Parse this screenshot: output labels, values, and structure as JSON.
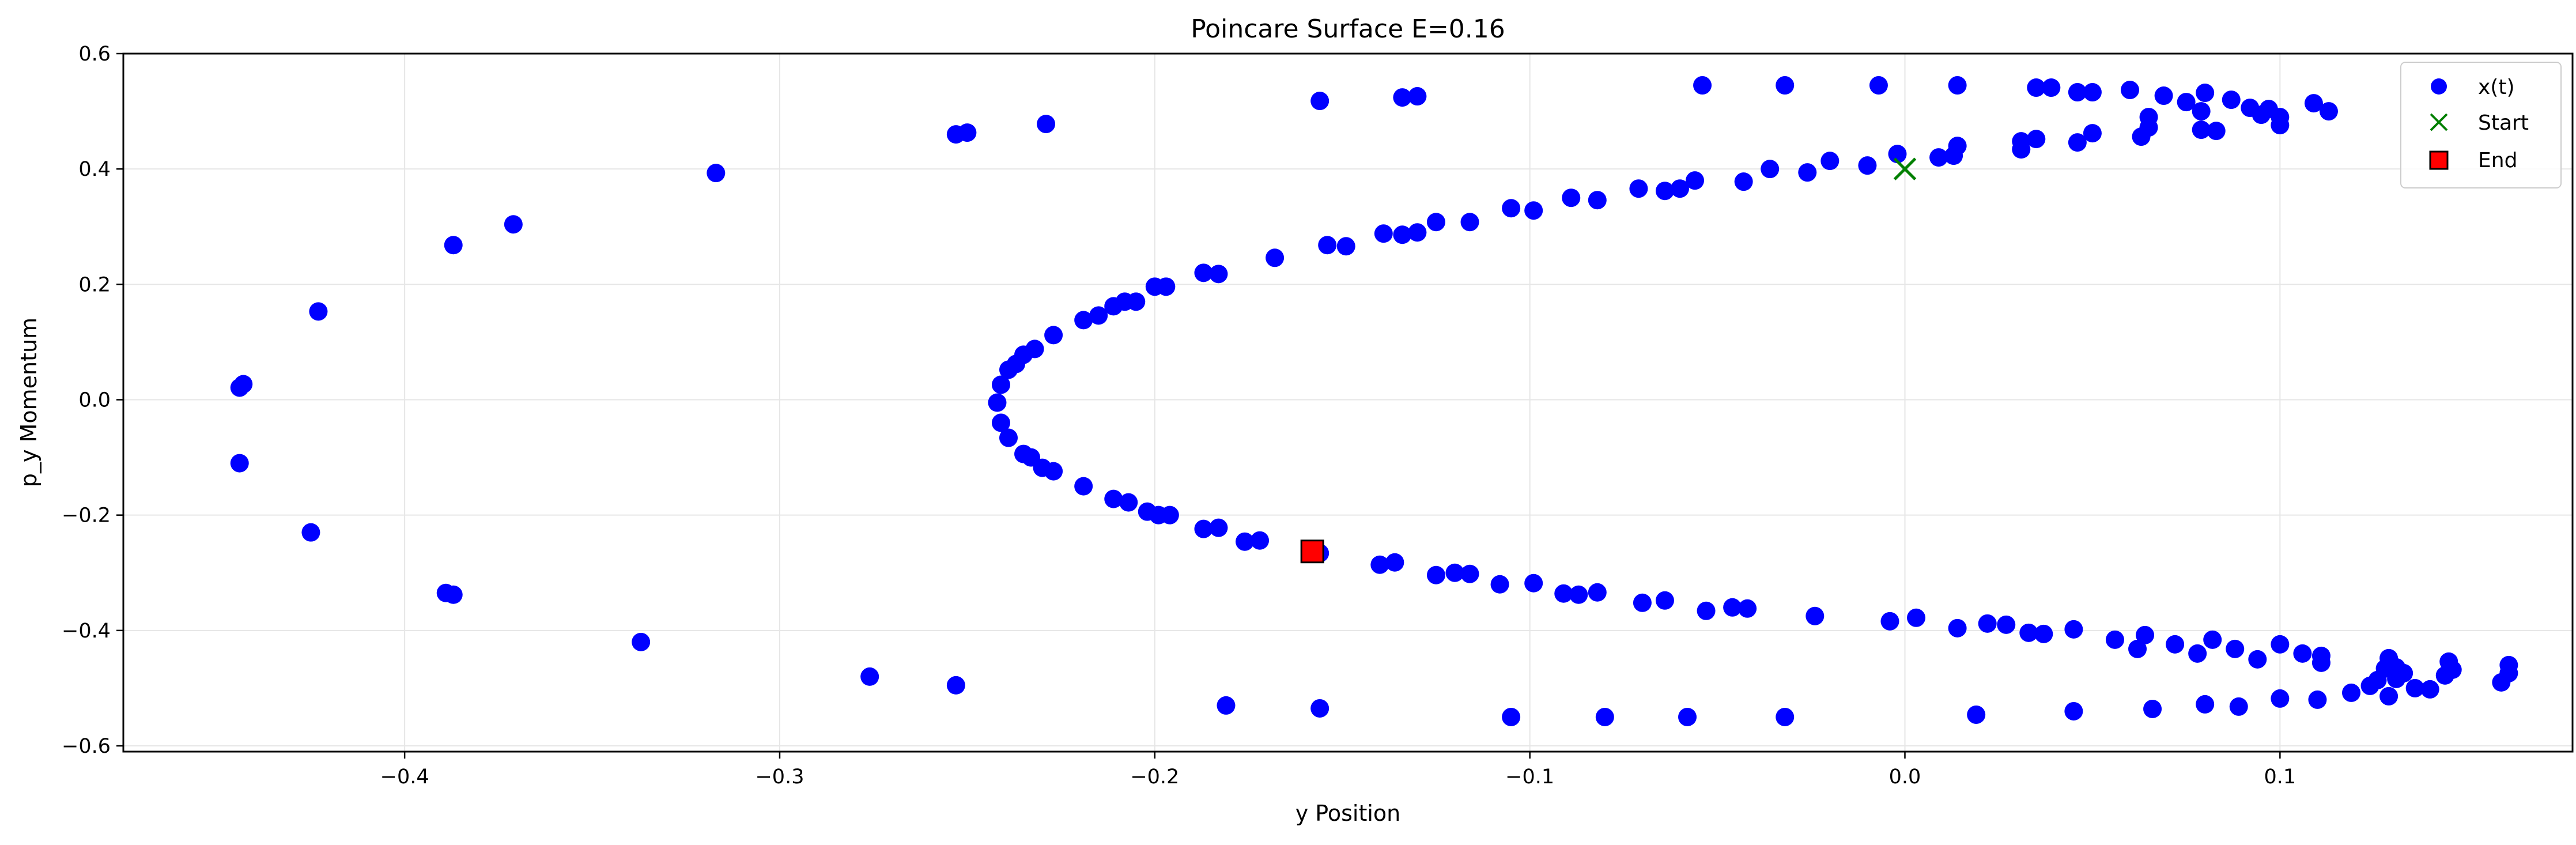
{
  "chart_data": {
    "type": "scatter",
    "title": "Poincare Surface E=0.16",
    "xlabel": "y Position",
    "ylabel": "p_y Momentum",
    "xlim": [
      -0.475,
      0.178
    ],
    "ylim": [
      -0.61,
      0.6
    ],
    "grid": true,
    "legend_position": "top-right",
    "xticks": [
      -0.4,
      -0.3,
      -0.2,
      -0.1,
      0.0,
      0.1
    ],
    "xtick_labels": [
      "−0.4",
      "−0.3",
      "−0.2",
      "−0.1",
      "0.0",
      "0.1"
    ],
    "yticks": [
      -0.6,
      -0.4,
      -0.2,
      0.0,
      0.2,
      0.4,
      0.6
    ],
    "ytick_labels": [
      "−0.6",
      "−0.4",
      "−0.2",
      "0.0",
      "0.2",
      "0.4",
      "0.6"
    ],
    "colors": {
      "points": "#0000ff",
      "start": "#008000",
      "end": "#ff0000"
    },
    "series": [
      {
        "name": "x(t)",
        "marker": "circle",
        "points": [
          [
            -0.443,
            0.027
          ],
          [
            -0.444,
            0.021
          ],
          [
            -0.444,
            -0.11
          ],
          [
            -0.423,
            0.153
          ],
          [
            -0.425,
            -0.23
          ],
          [
            -0.387,
            0.268
          ],
          [
            -0.371,
            0.304
          ],
          [
            -0.389,
            -0.335
          ],
          [
            -0.387,
            -0.338
          ],
          [
            -0.337,
            -0.42
          ],
          [
            -0.317,
            0.393
          ],
          [
            -0.276,
            -0.48
          ],
          [
            -0.253,
            0.46
          ],
          [
            -0.25,
            0.463
          ],
          [
            -0.229,
            0.478
          ],
          [
            -0.253,
            -0.495
          ],
          [
            -0.181,
            -0.53
          ],
          [
            -0.156,
            0.518
          ],
          [
            -0.156,
            -0.535
          ],
          [
            -0.134,
            0.524
          ],
          [
            -0.13,
            0.526
          ],
          [
            -0.105,
            -0.55
          ],
          [
            -0.08,
            -0.55
          ],
          [
            -0.058,
            -0.55
          ],
          [
            -0.032,
            -0.55
          ],
          [
            -0.054,
            0.545
          ],
          [
            -0.032,
            0.545
          ],
          [
            -0.007,
            0.545
          ],
          [
            0.014,
            0.545
          ],
          [
            0.035,
            0.541
          ],
          [
            0.039,
            0.541
          ],
          [
            0.046,
            0.533
          ],
          [
            0.05,
            0.533
          ],
          [
            0.06,
            0.537
          ],
          [
            0.069,
            0.527
          ],
          [
            0.075,
            0.516
          ],
          [
            0.08,
            0.532
          ],
          [
            0.079,
            0.5
          ],
          [
            0.087,
            0.52
          ],
          [
            0.092,
            0.506
          ],
          [
            0.095,
            0.494
          ],
          [
            0.097,
            0.504
          ],
          [
            0.1,
            0.49
          ],
          [
            0.1,
            0.476
          ],
          [
            0.109,
            0.514
          ],
          [
            0.113,
            0.5
          ],
          [
            0.079,
            0.468
          ],
          [
            0.083,
            0.466
          ],
          [
            0.065,
            0.472
          ],
          [
            0.063,
            0.456
          ],
          [
            0.065,
            0.49
          ],
          [
            0.05,
            0.462
          ],
          [
            0.046,
            0.446
          ],
          [
            0.035,
            0.452
          ],
          [
            0.031,
            0.448
          ],
          [
            0.031,
            0.434
          ],
          [
            0.014,
            0.44
          ],
          [
            0.013,
            0.423
          ],
          [
            0.009,
            0.42
          ],
          [
            -0.002,
            0.426
          ],
          [
            -0.01,
            0.406
          ],
          [
            -0.02,
            0.414
          ],
          [
            -0.026,
            0.394
          ],
          [
            -0.036,
            0.4
          ],
          [
            -0.043,
            0.378
          ],
          [
            -0.056,
            0.38
          ],
          [
            -0.06,
            0.366
          ],
          [
            -0.064,
            0.362
          ],
          [
            -0.071,
            0.366
          ],
          [
            -0.082,
            0.346
          ],
          [
            -0.089,
            0.35
          ],
          [
            -0.099,
            0.328
          ],
          [
            -0.105,
            0.332
          ],
          [
            -0.116,
            0.308
          ],
          [
            -0.125,
            0.308
          ],
          [
            -0.13,
            0.29
          ],
          [
            -0.134,
            0.286
          ],
          [
            -0.139,
            0.288
          ],
          [
            -0.149,
            0.266
          ],
          [
            -0.154,
            0.268
          ],
          [
            -0.168,
            0.246
          ],
          [
            -0.183,
            0.218
          ],
          [
            -0.187,
            0.22
          ],
          [
            -0.197,
            0.196
          ],
          [
            -0.2,
            0.196
          ],
          [
            -0.205,
            0.17
          ],
          [
            -0.208,
            0.17
          ],
          [
            -0.211,
            0.162
          ],
          [
            -0.215,
            0.146
          ],
          [
            -0.219,
            0.138
          ],
          [
            -0.227,
            0.112
          ],
          [
            -0.232,
            0.088
          ],
          [
            -0.235,
            0.078
          ],
          [
            -0.237,
            0.062
          ],
          [
            -0.239,
            0.052
          ],
          [
            -0.241,
            0.026
          ],
          [
            -0.242,
            -0.005
          ],
          [
            -0.241,
            -0.04
          ],
          [
            -0.239,
            -0.066
          ],
          [
            -0.235,
            -0.094
          ],
          [
            -0.233,
            -0.1
          ],
          [
            -0.23,
            -0.118
          ],
          [
            -0.227,
            -0.124
          ],
          [
            -0.219,
            -0.15
          ],
          [
            -0.211,
            -0.172
          ],
          [
            -0.207,
            -0.178
          ],
          [
            -0.202,
            -0.194
          ],
          [
            -0.199,
            -0.2
          ],
          [
            -0.196,
            -0.2
          ],
          [
            -0.187,
            -0.224
          ],
          [
            -0.183,
            -0.222
          ],
          [
            -0.176,
            -0.246
          ],
          [
            -0.172,
            -0.244
          ],
          [
            -0.156,
            -0.266
          ],
          [
            -0.14,
            -0.286
          ],
          [
            -0.136,
            -0.282
          ],
          [
            -0.125,
            -0.304
          ],
          [
            -0.12,
            -0.3
          ],
          [
            -0.116,
            -0.302
          ],
          [
            -0.108,
            -0.32
          ],
          [
            -0.099,
            -0.318
          ],
          [
            -0.091,
            -0.336
          ],
          [
            -0.087,
            -0.338
          ],
          [
            -0.082,
            -0.334
          ],
          [
            -0.07,
            -0.352
          ],
          [
            -0.064,
            -0.348
          ],
          [
            -0.053,
            -0.366
          ],
          [
            -0.046,
            -0.36
          ],
          [
            -0.042,
            -0.362
          ],
          [
            -0.024,
            -0.375
          ],
          [
            -0.004,
            -0.384
          ],
          [
            0.003,
            -0.378
          ],
          [
            0.014,
            -0.396
          ],
          [
            0.022,
            -0.388
          ],
          [
            0.027,
            -0.39
          ],
          [
            0.033,
            -0.404
          ],
          [
            0.037,
            -0.406
          ],
          [
            0.045,
            -0.398
          ],
          [
            0.056,
            -0.416
          ],
          [
            0.062,
            -0.432
          ],
          [
            0.064,
            -0.408
          ],
          [
            0.072,
            -0.424
          ],
          [
            0.078,
            -0.44
          ],
          [
            0.082,
            -0.416
          ],
          [
            0.088,
            -0.432
          ],
          [
            0.094,
            -0.45
          ],
          [
            0.1,
            -0.424
          ],
          [
            0.106,
            -0.44
          ],
          [
            0.111,
            -0.456
          ],
          [
            0.111,
            -0.444
          ],
          [
            0.119,
            -0.508
          ],
          [
            0.124,
            -0.496
          ],
          [
            0.126,
            -0.486
          ],
          [
            0.128,
            -0.466
          ],
          [
            0.129,
            -0.448
          ],
          [
            0.131,
            -0.464
          ],
          [
            0.131,
            -0.484
          ],
          [
            0.133,
            -0.474
          ],
          [
            0.129,
            -0.514
          ],
          [
            0.136,
            -0.5
          ],
          [
            0.14,
            -0.502
          ],
          [
            0.144,
            -0.478
          ],
          [
            0.145,
            -0.454
          ],
          [
            0.146,
            -0.468
          ],
          [
            0.159,
            -0.49
          ],
          [
            0.161,
            -0.474
          ],
          [
            0.161,
            -0.46
          ],
          [
            0.11,
            -0.52
          ],
          [
            0.1,
            -0.518
          ],
          [
            0.089,
            -0.532
          ],
          [
            0.08,
            -0.528
          ],
          [
            0.066,
            -0.536
          ],
          [
            0.045,
            -0.54
          ],
          [
            0.019,
            -0.546
          ]
        ]
      },
      {
        "name": "Start",
        "marker": "x",
        "points": [
          [
            0.0,
            0.4
          ]
        ]
      },
      {
        "name": "End",
        "marker": "square",
        "points": [
          [
            -0.158,
            -0.263
          ]
        ]
      }
    ]
  }
}
